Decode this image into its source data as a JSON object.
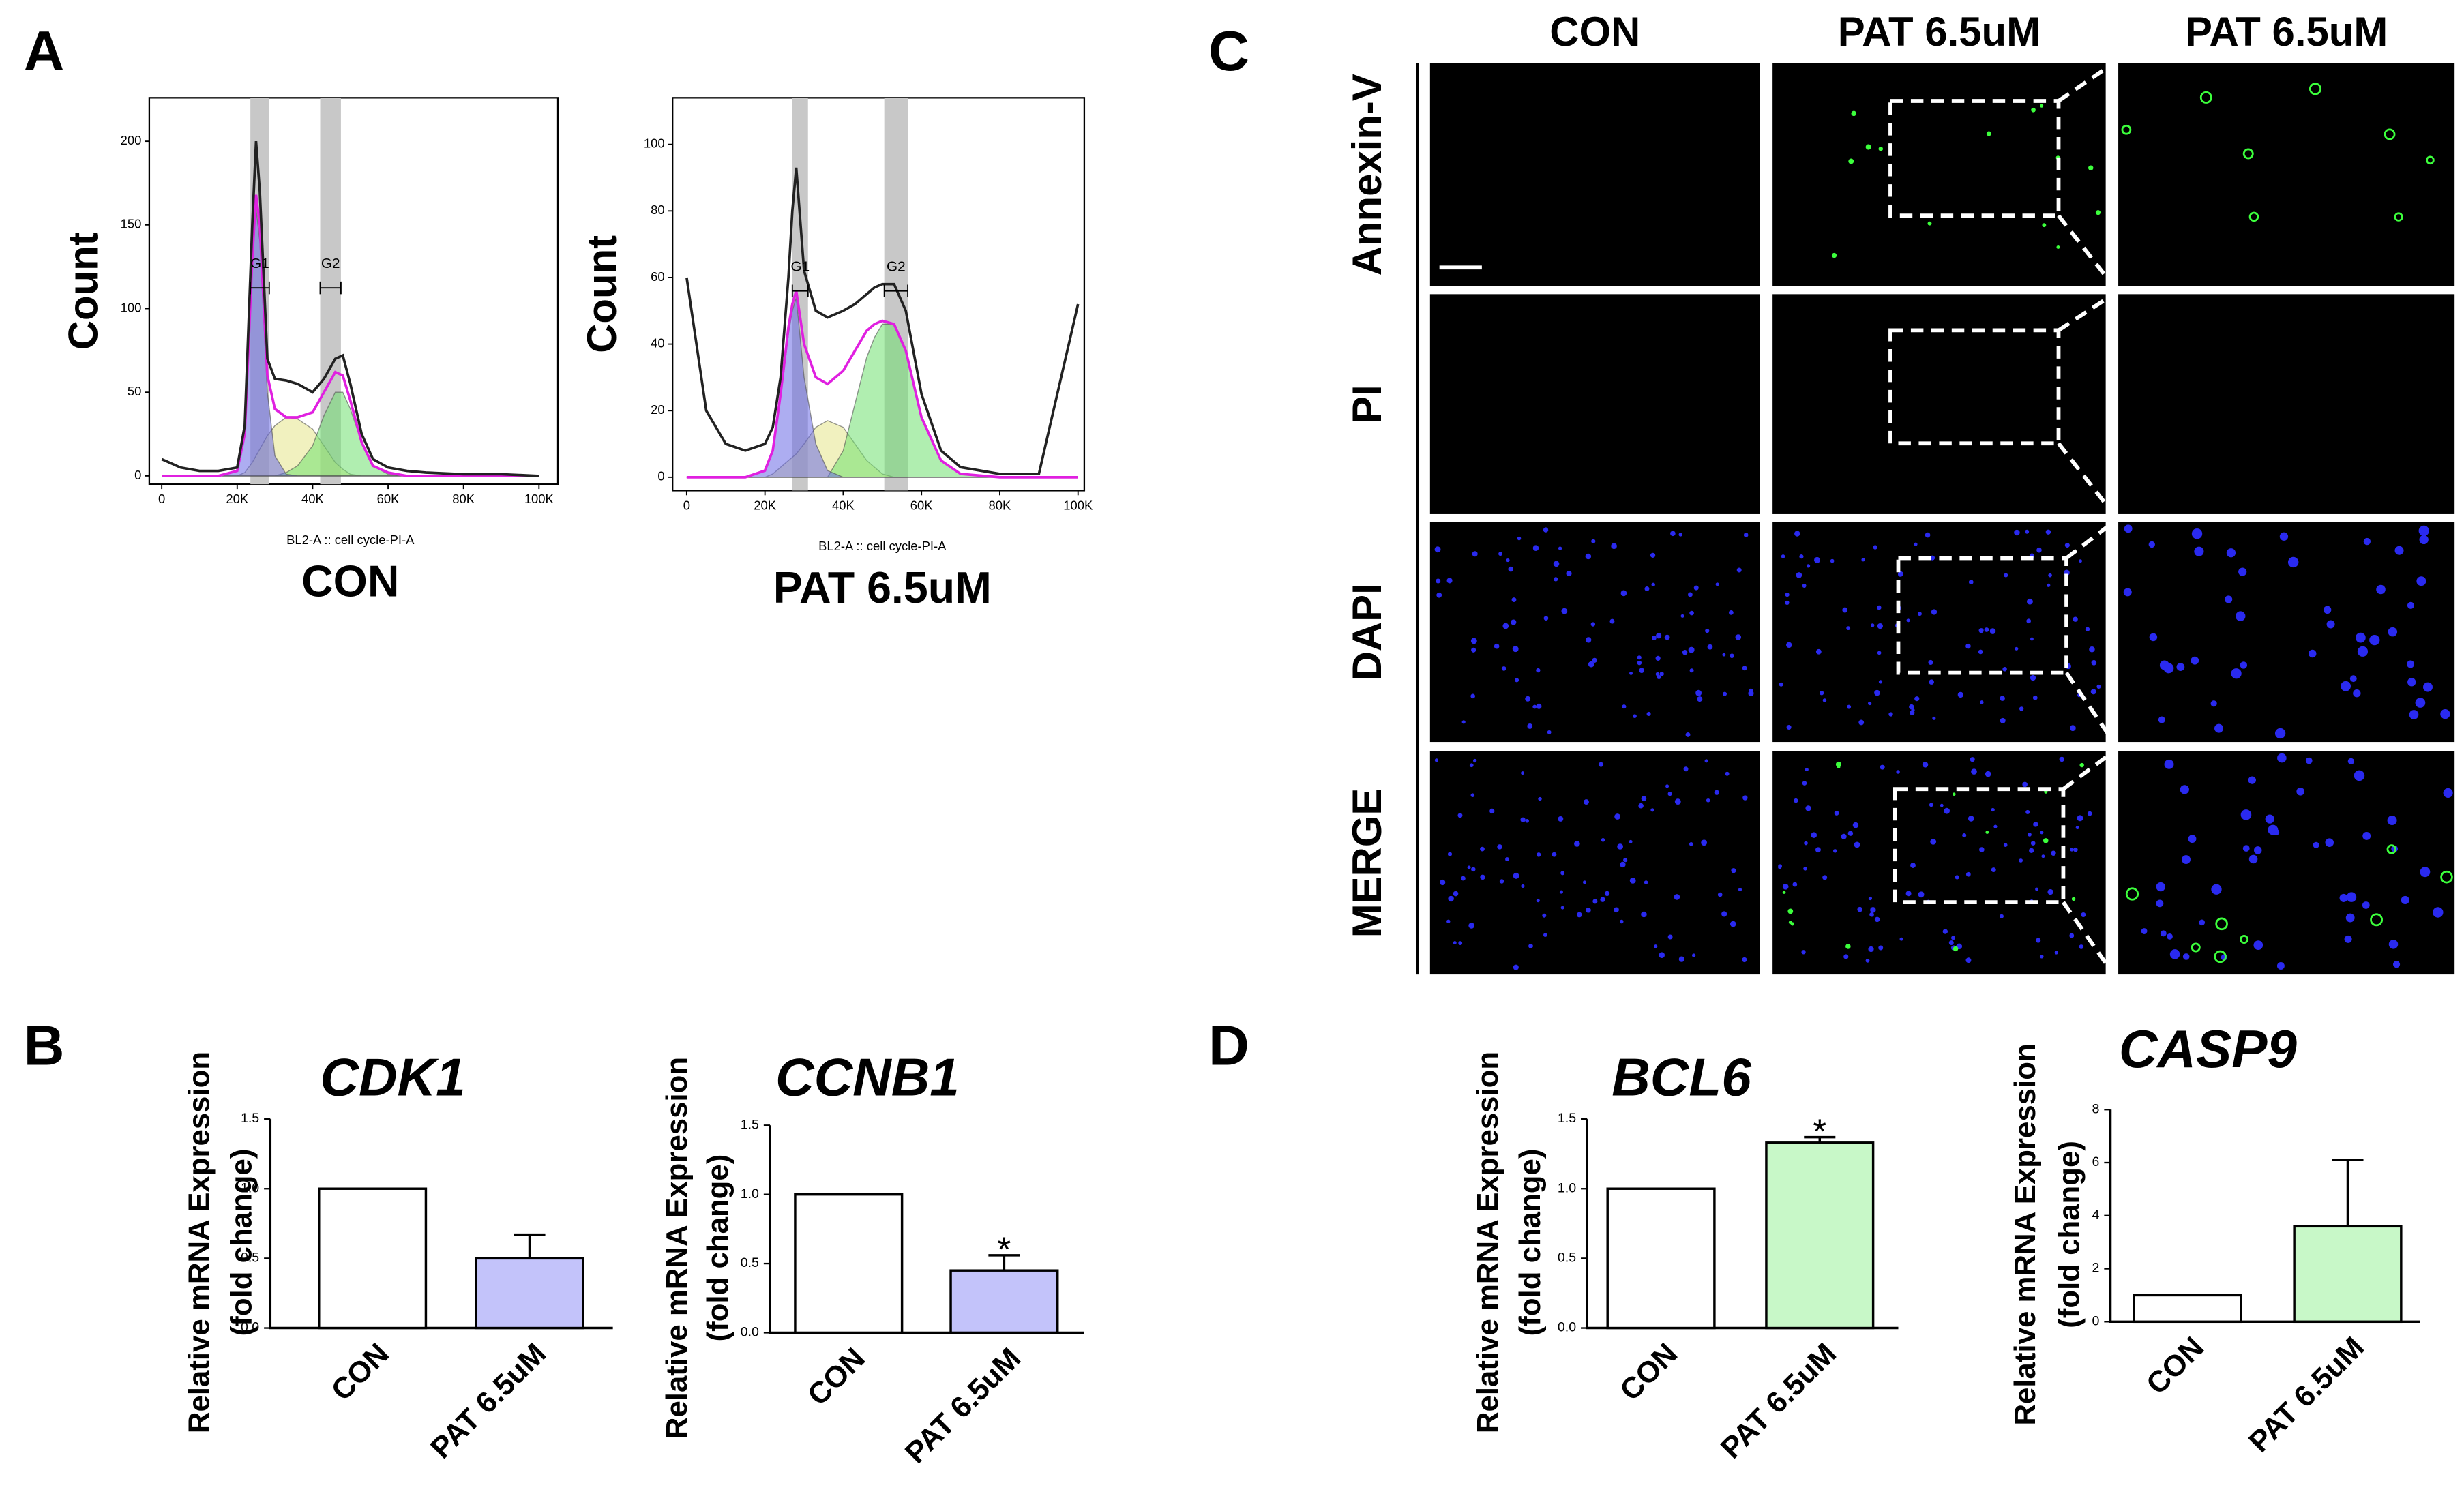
{
  "panel_labels": [
    "A",
    "B",
    "C",
    "D"
  ],
  "chart_data": [
    {
      "type": "area",
      "title": "CON",
      "xlabel": "BL2-A :: cell cycle-PI-A",
      "ylabel": "Count",
      "x": [
        0,
        5000,
        10000,
        15000,
        20000,
        22000,
        24000,
        25000,
        26000,
        27000,
        28000,
        30000,
        33000,
        36000,
        40000,
        43000,
        46000,
        48000,
        50000,
        53000,
        56000,
        60000,
        65000,
        70000,
        80000,
        90000,
        100000
      ],
      "series": [
        {
          "color": "#e6e68a",
          "filled": true,
          "values": [
            0,
            0,
            0,
            0,
            0,
            2,
            8,
            12,
            16,
            20,
            24,
            30,
            35,
            34,
            28,
            18,
            8,
            4,
            1,
            0,
            0,
            0,
            0,
            0,
            0,
            0,
            0
          ]
        },
        {
          "color": "#6fe06f",
          "filled": true,
          "values": [
            0,
            0,
            0,
            0,
            0,
            0,
            0,
            0,
            0,
            0,
            0,
            0,
            2,
            6,
            18,
            36,
            50,
            50,
            40,
            20,
            6,
            1,
            0,
            0,
            0,
            0,
            0
          ]
        },
        {
          "color": "#6a6ae6",
          "filled": true,
          "values": [
            0,
            0,
            0,
            0,
            3,
            25,
            125,
            160,
            140,
            95,
            50,
            12,
            1,
            0,
            0,
            0,
            0,
            0,
            0,
            0,
            0,
            0,
            0,
            0,
            0,
            0,
            0
          ]
        },
        {
          "color": "#e020e0",
          "values": [
            0,
            0,
            0,
            0,
            3,
            25,
            130,
            168,
            150,
            105,
            60,
            40,
            35,
            35,
            38,
            50,
            62,
            60,
            45,
            20,
            6,
            2,
            0,
            0,
            0,
            0,
            0
          ]
        },
        {
          "color": "#222222",
          "values": [
            10,
            5,
            3,
            3,
            5,
            30,
            150,
            200,
            170,
            120,
            70,
            58,
            57,
            55,
            50,
            58,
            70,
            72,
            55,
            25,
            10,
            5,
            3,
            2,
            1,
            1,
            0
          ]
        }
      ],
      "gates": [
        {
          "label": "G1",
          "range": [
            23500,
            28500
          ]
        },
        {
          "label": "G2",
          "range": [
            42000,
            47500
          ]
        }
      ],
      "xlim": [
        -3300,
        105000
      ],
      "ylim": [
        -5,
        226
      ],
      "xticks": [
        0,
        {
          "value": 20000,
          "label": "20K"
        },
        {
          "value": 40000,
          "label": "40K"
        },
        {
          "value": 60000,
          "label": "60K"
        },
        {
          "value": 80000,
          "label": "80K"
        },
        {
          "value": 100000,
          "label": "100K"
        }
      ],
      "yticks": [
        0,
        50,
        100,
        150,
        200
      ]
    },
    {
      "type": "area",
      "title": "PAT 6.5uM",
      "xlabel": "BL2-A :: cell cycle-PI-A",
      "ylabel": "Count",
      "x": [
        0,
        5000,
        10000,
        15000,
        20000,
        22000,
        24000,
        25000,
        26000,
        27000,
        28000,
        30000,
        33000,
        36000,
        40000,
        43000,
        46000,
        48000,
        50000,
        53000,
        56000,
        60000,
        65000,
        70000,
        80000,
        90000,
        100000
      ],
      "series": [
        {
          "color": "#e6e68a",
          "filled": true,
          "values": [
            0,
            0,
            0,
            0,
            0,
            1,
            3,
            4,
            5,
            6,
            7,
            10,
            15,
            17,
            15,
            10,
            5,
            3,
            1,
            0,
            0,
            0,
            0,
            0,
            0,
            0,
            0
          ]
        },
        {
          "color": "#6fe06f",
          "filled": true,
          "values": [
            0,
            0,
            0,
            0,
            0,
            0,
            0,
            0,
            0,
            0,
            0,
            0,
            0,
            0,
            8,
            22,
            36,
            42,
            46,
            46,
            38,
            18,
            5,
            1,
            0,
            0,
            0
          ]
        },
        {
          "color": "#6a6ae6",
          "filled": true,
          "values": [
            0,
            0,
            0,
            0,
            2,
            8,
            24,
            33,
            43,
            50,
            54,
            30,
            10,
            2,
            0,
            0,
            0,
            0,
            0,
            0,
            0,
            0,
            0,
            0,
            0,
            0,
            0
          ]
        },
        {
          "color": "#e020e0",
          "values": [
            0,
            0,
            0,
            0,
            2,
            8,
            25,
            35,
            45,
            52,
            56,
            40,
            30,
            28,
            32,
            38,
            44,
            46,
            47,
            46,
            38,
            18,
            5,
            1,
            0,
            0,
            0
          ]
        },
        {
          "color": "#222222",
          "values": [
            60,
            20,
            10,
            8,
            10,
            15,
            30,
            45,
            60,
            80,
            93,
            62,
            50,
            48,
            50,
            52,
            55,
            57,
            58,
            58,
            50,
            25,
            8,
            3,
            1,
            1,
            52
          ]
        }
      ],
      "gates": [
        {
          "label": "G1",
          "range": [
            27000,
            31000
          ]
        },
        {
          "label": "G2",
          "range": [
            50500,
            56500
          ]
        }
      ],
      "xlim": [
        -3600,
        101600
      ],
      "ylim": [
        -4,
        114
      ],
      "xticks": [
        0,
        {
          "value": 20000,
          "label": "20K"
        },
        {
          "value": 40000,
          "label": "40K"
        },
        {
          "value": 60000,
          "label": "60K"
        },
        {
          "value": 80000,
          "label": "80K"
        },
        {
          "value": 100000,
          "label": "100K"
        }
      ],
      "yticks": [
        0,
        20,
        40,
        60,
        80,
        100
      ]
    },
    {
      "type": "bar",
      "title": "CDK1",
      "ylabel": [
        "Relative mRNA Expression",
        "(fold change)"
      ],
      "categories": [
        "CON",
        "PAT 6.5uM"
      ],
      "values": [
        1,
        0.5
      ],
      "errors": [
        null,
        0.17
      ],
      "colors": [
        "#ffffff",
        "#c3c3fa"
      ],
      "ylim": [
        0,
        1.5
      ],
      "yticks": [
        {
          "value": 0,
          "label": "0.0"
        },
        0.5,
        {
          "value": 1,
          "label": "1.0"
        },
        1.5
      ]
    },
    {
      "type": "bar",
      "title": "CCNB1",
      "ylabel": [
        "Relative mRNA Expression",
        "(fold change)"
      ],
      "categories": [
        "CON",
        "PAT 6.5uM"
      ],
      "values": [
        1,
        0.45
      ],
      "errors": [
        null,
        0.11
      ],
      "annotations": [
        null,
        "*"
      ],
      "colors": [
        "#ffffff",
        "#c3c3fa"
      ],
      "ylim": [
        0,
        1.5
      ],
      "yticks": [
        {
          "value": 0,
          "label": "0.0"
        },
        0.5,
        {
          "value": 1,
          "label": "1.0"
        },
        1.5
      ]
    },
    {
      "type": "bar",
      "title": "BCL6",
      "ylabel": [
        "Relative mRNA Expression",
        "(fold change)"
      ],
      "categories": [
        "CON",
        "PAT 6.5uM"
      ],
      "values": [
        1,
        1.33
      ],
      "errors": [
        null,
        0.04
      ],
      "annotations": [
        null,
        "*"
      ],
      "colors": [
        "#ffffff",
        "#c8f8c8"
      ],
      "ylim": [
        0,
        1.5
      ],
      "yticks": [
        {
          "value": 0,
          "label": "0.0"
        },
        0.5,
        {
          "value": 1,
          "label": "1.0"
        },
        1.5
      ]
    },
    {
      "type": "bar",
      "title": "CASP9",
      "ylabel": [
        "Relative mRNA Expression",
        "(fold change)"
      ],
      "categories": [
        "CON",
        "PAT 6.5uM"
      ],
      "values": [
        1,
        3.6
      ],
      "errors": [
        null,
        2.5
      ],
      "colors": [
        "#ffffff",
        "#c8f8c8"
      ],
      "ylim": [
        0,
        8
      ],
      "yticks": [
        0,
        2,
        4,
        6,
        8
      ]
    }
  ],
  "micrograph": {
    "columns": [
      "CON",
      "PAT 6.5uM",
      "PAT 6.5uM"
    ],
    "rows": [
      "Annexin-V",
      "PI",
      "DAPI",
      "MERGE"
    ]
  }
}
